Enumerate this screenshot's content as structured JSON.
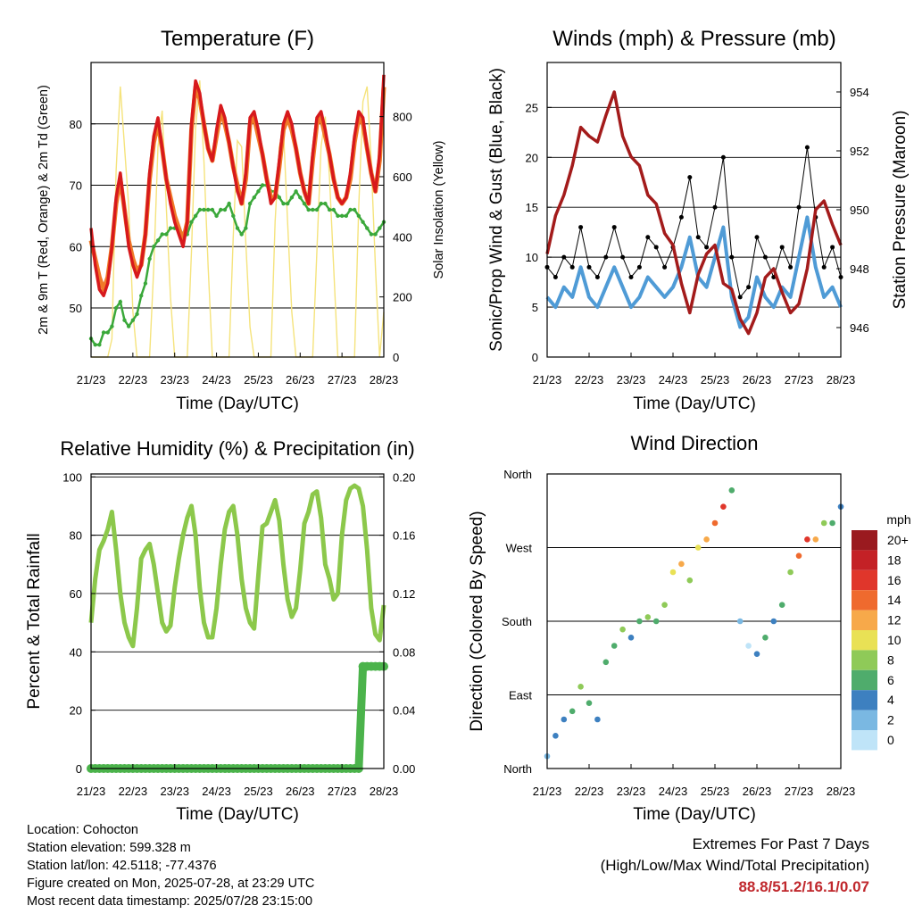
{
  "time_ticks": [
    "21/23",
    "22/23",
    "23/23",
    "24/23",
    "25/23",
    "26/23",
    "27/23",
    "28/23"
  ],
  "panels": {
    "temperature": {
      "title": "Temperature (F)",
      "xlabel": "Time (Day/UTC)",
      "ylabel_left": "2m & 9m T (Red, Orange) & 2m Td (Green)",
      "ylabel_right": "Solar Insolation (Yellow)",
      "left_ticks": [
        "50",
        "60",
        "70",
        "80"
      ],
      "right_ticks": [
        "0",
        "200",
        "400",
        "600",
        "800"
      ]
    },
    "winds": {
      "title": "Winds (mph) & Pressure (mb)",
      "xlabel": "Time (Day/UTC)",
      "ylabel_left": "Sonic/Prop Wind & Gust (Blue, Black)",
      "ylabel_right": "Station Pressure (Maroon)",
      "left_ticks": [
        "0",
        "5",
        "10",
        "15",
        "20",
        "25"
      ],
      "right_ticks": [
        "946",
        "948",
        "950",
        "952",
        "954"
      ]
    },
    "humidity": {
      "title": "Relative Humidity (%) & Precipitation (in)",
      "xlabel": "Time (Day/UTC)",
      "ylabel_left": "Percent & Total Rainfall",
      "left_ticks": [
        "0",
        "20",
        "40",
        "60",
        "80",
        "100"
      ],
      "right_ticks": [
        "0.00",
        "0.04",
        "0.08",
        "0.12",
        "0.16",
        "0.20"
      ]
    },
    "direction": {
      "title": "Wind Direction",
      "xlabel": "Time (Day/UTC)",
      "ylabel_left": "Direction (Colored By Speed)",
      "left_ticks": [
        "North",
        "East",
        "South",
        "West",
        "North"
      ],
      "legend_title": "mph",
      "legend_labels": [
        "20+",
        "18",
        "16",
        "14",
        "12",
        "10",
        "8",
        "6",
        "4",
        "2",
        "0"
      ],
      "legend_colors": [
        "#9a1a1f",
        "#c42126",
        "#e0362b",
        "#ef6a2e",
        "#f7a94a",
        "#e9e155",
        "#8fca58",
        "#4fac6c",
        "#3d80c0",
        "#7ab8e2",
        "#bfe4f8"
      ]
    }
  },
  "chart_data": [
    {
      "type": "line",
      "title": "Temperature (F)",
      "xlabel": "Time (Day/UTC)",
      "ylabel": "2m & 9m T (Red, Orange) & 2m Td (Green)",
      "y2label": "Solar Insolation (Yellow)",
      "x": [
        0,
        0.1,
        0.2,
        0.3,
        0.4,
        0.5,
        0.6,
        0.7,
        0.8,
        0.9,
        1.0,
        1.1,
        1.2,
        1.3,
        1.4,
        1.5,
        1.6,
        1.7,
        1.8,
        1.9,
        2.0,
        2.1,
        2.2,
        2.3,
        2.4,
        2.5,
        2.6,
        2.7,
        2.8,
        2.9,
        3.0,
        3.1,
        3.2,
        3.3,
        3.4,
        3.5,
        3.6,
        3.7,
        3.8,
        3.9,
        4.0,
        4.1,
        4.2,
        4.3,
        4.4,
        4.5,
        4.6,
        4.7,
        4.8,
        4.9,
        5.0,
        5.1,
        5.2,
        5.3,
        5.4,
        5.5,
        5.6,
        5.7,
        5.8,
        5.9,
        6.0,
        6.1,
        6.2,
        6.3,
        6.4,
        6.5,
        6.6,
        6.7,
        6.8,
        6.9,
        7.0
      ],
      "ylim": [
        42,
        90
      ],
      "y2lim": [
        0,
        980
      ],
      "series": [
        {
          "name": "2m T",
          "color": "#d7191c",
          "values": [
            63,
            57,
            53,
            52,
            54,
            60,
            68,
            72,
            66,
            60,
            57,
            55,
            57,
            62,
            72,
            78,
            81,
            76,
            71,
            67,
            64,
            62,
            60,
            64,
            80,
            87,
            85,
            80,
            76,
            74,
            79,
            83,
            81,
            77,
            73,
            69,
            67,
            72,
            81,
            82,
            79,
            75,
            71,
            67,
            68,
            74,
            80,
            82,
            80,
            76,
            72,
            69,
            67,
            75,
            81,
            82,
            79,
            75,
            71,
            68,
            67,
            68,
            72,
            78,
            82,
            81,
            76,
            72,
            69,
            75,
            88
          ]
        },
        {
          "name": "9m T",
          "color": "#f07a28",
          "values": [
            61,
            58,
            55,
            53,
            55,
            60,
            67,
            71,
            66,
            61,
            58,
            56,
            57,
            62,
            71,
            77,
            80,
            76,
            71,
            68,
            65,
            63,
            61,
            64,
            79,
            86,
            84,
            80,
            76,
            74,
            78,
            82,
            80,
            77,
            73,
            70,
            67,
            71,
            80,
            81,
            78,
            75,
            71,
            68,
            68,
            73,
            79,
            81,
            79,
            76,
            72,
            69,
            67,
            74,
            80,
            81,
            78,
            75,
            71,
            68,
            67,
            68,
            71,
            77,
            81,
            80,
            76,
            72,
            69,
            74,
            86
          ]
        },
        {
          "name": "2m Td",
          "color": "#3aa83a",
          "values": [
            45,
            44,
            44,
            46,
            46,
            47,
            50,
            51,
            48,
            47,
            48,
            49,
            52,
            54,
            58,
            60,
            61,
            62,
            62,
            63,
            63,
            63,
            62,
            62,
            64,
            65,
            66,
            66,
            66,
            66,
            65,
            66,
            66,
            67,
            65,
            63,
            62,
            63,
            67,
            68,
            69,
            70,
            70,
            69,
            69,
            68,
            67,
            67,
            68,
            69,
            68,
            67,
            66,
            66,
            66,
            67,
            67,
            66,
            66,
            65,
            65,
            65,
            66,
            66,
            65,
            64,
            63,
            62,
            62,
            63,
            64
          ]
        },
        {
          "name": "Solar Insolation",
          "color": "#f5e37c",
          "values": [
            0,
            0,
            0,
            0,
            0,
            60,
            620,
            900,
            700,
            500,
            150,
            0,
            0,
            0,
            0,
            300,
            700,
            820,
            500,
            200,
            0,
            0,
            0,
            0,
            350,
            760,
            920,
            650,
            300,
            0,
            0,
            0,
            0,
            0,
            400,
            720,
            700,
            380,
            100,
            0,
            0,
            0,
            0,
            0,
            450,
            700,
            760,
            450,
            150,
            0,
            0,
            0,
            0,
            0,
            350,
            700,
            800,
            600,
            300,
            0,
            0,
            0,
            0,
            0,
            500,
            850,
            900,
            650,
            300,
            0,
            150
          ]
        }
      ]
    },
    {
      "type": "line",
      "title": "Winds (mph) & Pressure (mb)",
      "xlabel": "Time (Day/UTC)",
      "ylabel": "Sonic/Prop Wind & Gust (Blue, Black)",
      "y2label": "Station Pressure (Maroon)",
      "x": [
        0,
        0.2,
        0.4,
        0.6,
        0.8,
        1.0,
        1.2,
        1.4,
        1.6,
        1.8,
        2.0,
        2.2,
        2.4,
        2.6,
        2.8,
        3.0,
        3.2,
        3.4,
        3.6,
        3.8,
        4.0,
        4.2,
        4.4,
        4.6,
        4.8,
        5.0,
        5.2,
        5.4,
        5.6,
        5.8,
        6.0,
        6.2,
        6.4,
        6.6,
        6.8,
        7.0
      ],
      "ylim": [
        0,
        29.5
      ],
      "y2lim": [
        945,
        955
      ],
      "series": [
        {
          "name": "Wind",
          "color": "#4f9bd6",
          "values": [
            6,
            5,
            7,
            6,
            9,
            6,
            5,
            7,
            9,
            7,
            5,
            6,
            8,
            7,
            6,
            7,
            9,
            12,
            8,
            7,
            10,
            13,
            6,
            3,
            4,
            8,
            6,
            5,
            7,
            6,
            10,
            14,
            9,
            6,
            7,
            5
          ]
        },
        {
          "name": "Gust",
          "color": "#000000",
          "values": [
            9,
            8,
            10,
            9,
            13,
            9,
            8,
            10,
            13,
            10,
            8,
            9,
            12,
            11,
            9,
            11,
            14,
            18,
            12,
            11,
            15,
            20,
            10,
            6,
            7,
            12,
            10,
            8,
            11,
            9,
            15,
            21,
            14,
            9,
            11,
            8
          ]
        },
        {
          "name": "Station Pressure",
          "color": "#a31b1b",
          "values": [
            948.5,
            949.8,
            950.5,
            951.5,
            952.8,
            952.5,
            952.3,
            953.2,
            954,
            952.5,
            951.8,
            951.5,
            950.5,
            950.2,
            949.2,
            948.8,
            947.5,
            946.5,
            947.8,
            948.5,
            948.8,
            947.5,
            947.3,
            946.3,
            945.8,
            946.5,
            947.7,
            948,
            947.2,
            946.5,
            946.8,
            948,
            950,
            950.3,
            949.5,
            948.8
          ]
        }
      ]
    },
    {
      "type": "line",
      "title": "Relative Humidity (%) & Precipitation (in)",
      "xlabel": "Time (Day/UTC)",
      "ylabel": "Percent & Total Rainfall",
      "x": [
        0,
        0.1,
        0.2,
        0.3,
        0.4,
        0.5,
        0.6,
        0.7,
        0.8,
        0.9,
        1.0,
        1.1,
        1.2,
        1.3,
        1.4,
        1.5,
        1.6,
        1.7,
        1.8,
        1.9,
        2.0,
        2.1,
        2.2,
        2.3,
        2.4,
        2.5,
        2.6,
        2.7,
        2.8,
        2.9,
        3.0,
        3.1,
        3.2,
        3.3,
        3.4,
        3.5,
        3.6,
        3.7,
        3.8,
        3.9,
        4.0,
        4.1,
        4.2,
        4.3,
        4.4,
        4.5,
        4.6,
        4.7,
        4.8,
        4.9,
        5.0,
        5.1,
        5.2,
        5.3,
        5.4,
        5.5,
        5.6,
        5.7,
        5.8,
        5.9,
        6.0,
        6.1,
        6.2,
        6.3,
        6.4,
        6.5,
        6.6,
        6.7,
        6.8,
        6.9,
        7.0
      ],
      "ylim": [
        0,
        101
      ],
      "y2lim": [
        0,
        0.202
      ],
      "series": [
        {
          "name": "Relative Humidity",
          "color": "#8cc84b",
          "values": [
            50,
            65,
            75,
            78,
            82,
            88,
            75,
            60,
            50,
            45,
            42,
            55,
            72,
            75,
            77,
            70,
            60,
            50,
            47,
            49,
            62,
            72,
            80,
            86,
            90,
            80,
            62,
            50,
            45,
            45,
            55,
            70,
            82,
            88,
            90,
            80,
            65,
            55,
            50,
            48,
            66,
            83,
            84,
            88,
            92,
            85,
            70,
            58,
            52,
            55,
            68,
            84,
            88,
            94,
            95,
            86,
            70,
            65,
            58,
            60,
            80,
            92,
            96,
            97,
            96,
            90,
            75,
            55,
            46,
            44,
            56
          ]
        },
        {
          "name": "Total Precipitation",
          "color": "#4bb34b",
          "values": [
            0,
            0,
            0,
            0,
            0,
            0,
            0,
            0,
            0,
            0,
            0,
            0,
            0,
            0,
            0,
            0,
            0,
            0,
            0,
            0,
            0,
            0,
            0,
            0,
            0,
            0,
            0,
            0,
            0,
            0,
            0,
            0,
            0,
            0,
            0,
            0,
            0,
            0,
            0,
            0,
            0,
            0,
            0,
            0,
            0,
            0,
            0,
            0,
            0,
            0,
            0,
            0,
            0,
            0,
            0,
            0,
            0,
            0,
            0,
            0,
            0,
            0,
            0,
            0,
            0,
            0.07,
            0.07,
            0.07,
            0.07,
            0.07,
            0.07
          ]
        }
      ]
    },
    {
      "type": "scatter",
      "title": "Wind Direction",
      "xlabel": "Time (Day/UTC)",
      "ylabel": "Direction (Colored By Speed)",
      "xlim": [
        0,
        7
      ],
      "ylim": [
        0,
        360
      ],
      "x": [
        0,
        0.2,
        0.4,
        0.6,
        0.8,
        1.0,
        1.2,
        1.4,
        1.6,
        1.8,
        2.0,
        2.2,
        2.4,
        2.6,
        2.8,
        3.0,
        3.2,
        3.4,
        3.6,
        3.8,
        4.0,
        4.2,
        4.4,
        4.6,
        4.8,
        5.0,
        5.2,
        5.4,
        5.6,
        5.8,
        6.0,
        6.2,
        6.4,
        6.6,
        6.8,
        7.0
      ],
      "series": [
        {
          "name": "Direction",
          "values": [
            15,
            40,
            60,
            70,
            100,
            80,
            60,
            130,
            150,
            170,
            160,
            180,
            185,
            180,
            200,
            240,
            250,
            230,
            270,
            280,
            300,
            320,
            340,
            180,
            150,
            140,
            160,
            180,
            200,
            240,
            260,
            280,
            280,
            300,
            300,
            320
          ]
        },
        {
          "name": "Speed",
          "values": [
            3,
            4,
            5,
            6,
            8,
            6,
            5,
            6,
            7,
            8,
            5,
            6,
            8,
            7,
            9,
            11,
            12,
            8,
            11,
            12,
            14,
            16,
            6,
            2,
            1,
            4,
            6,
            5,
            7,
            8,
            14,
            16,
            12,
            8,
            7,
            5
          ]
        }
      ]
    }
  ],
  "info": {
    "location": "Location: Cohocton",
    "elevation": "Station elevation: 599.328 m",
    "latlon": "Station lat/lon: 42.5118; -77.4376",
    "created": "Figure created on Mon, 2025-07-28, at 23:29 UTC",
    "recent": "Most recent data timestamp: 2025/07/28 23:15:00"
  },
  "extremes": {
    "title": "Extremes For Past 7 Days",
    "subtitle": "(High/Low/Max Wind/Total Precipitation)",
    "values": "88.8/51.2/16.1/0.07"
  }
}
